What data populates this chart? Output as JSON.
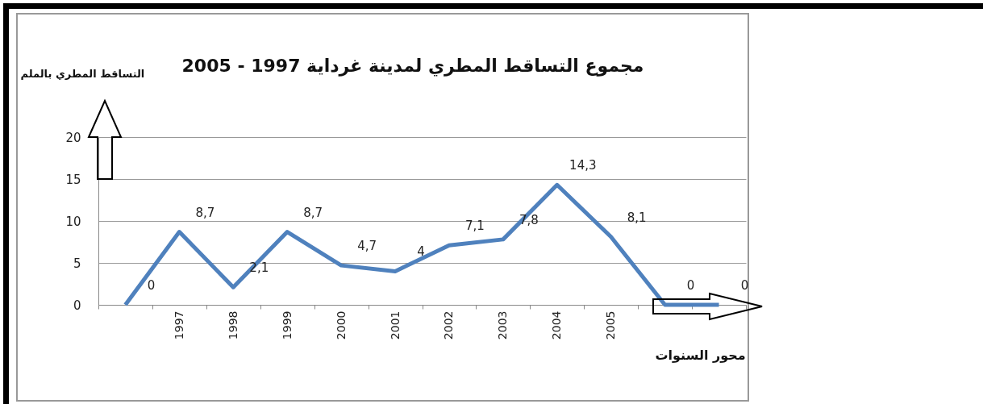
{
  "chart_data": {
    "type": "line",
    "title": "مجموع التساقط المطري لمدينة غرداية 1997 - 2005",
    "xlabel": "محور السنوات",
    "ylabel": "التساقط المطري بالملم",
    "categories": [
      null,
      "1997",
      "1998",
      "1999",
      "2000",
      "2001",
      "2002",
      "2003",
      "2004",
      "2005",
      null,
      null
    ],
    "values": [
      0,
      8.7,
      2.1,
      8.7,
      4.7,
      4,
      7.1,
      7.8,
      14.3,
      8.1,
      0,
      0
    ],
    "value_labels": [
      "0",
      "8,7",
      "2,1",
      "8,7",
      "4,7",
      "4",
      "7,1",
      "7,8",
      "14,3",
      "8,1",
      "0",
      "0"
    ],
    "color": "#4f81bd",
    "ylim": [
      0,
      20
    ],
    "yticks": [
      0,
      5,
      10,
      15,
      20
    ],
    "grid": "y",
    "line_style": "solid"
  }
}
